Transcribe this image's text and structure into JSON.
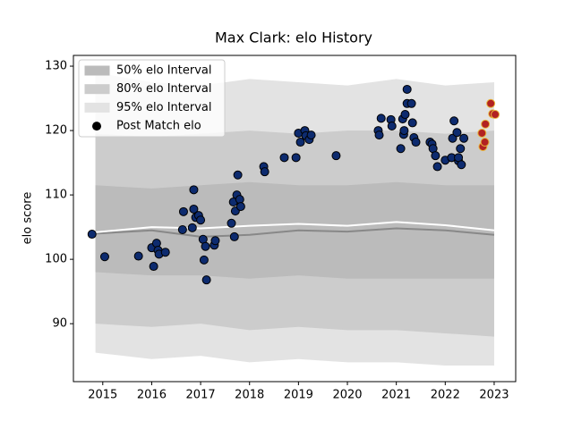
{
  "chart_data": {
    "type": "scatter",
    "title": "Max Clark: elo History",
    "ylabel": "elo score",
    "xlim": [
      2014.4,
      2023.44
    ],
    "ylim": [
      81,
      131.67
    ],
    "xticks": [
      2015,
      2016,
      2017,
      2018,
      2019,
      2020,
      2021,
      2022,
      2023
    ],
    "yticks": [
      90,
      100,
      110,
      120,
      130
    ],
    "legend": "upper left",
    "bands": [
      {
        "name": "50% elo Interval",
        "color": "#bbbbbb",
        "x": [
          2014.85,
          2016,
          2017,
          2018,
          2019,
          2020,
          2021,
          2022,
          2023
        ],
        "upper": [
          111.5,
          111,
          111.5,
          112,
          111.5,
          111.5,
          112,
          111.5,
          111.5
        ],
        "lower": [
          98,
          97.5,
          97.5,
          97,
          97.5,
          97,
          97,
          97,
          97
        ]
      },
      {
        "name": "80% elo Interval",
        "color": "#cccccc",
        "x": [
          2014.85,
          2016,
          2017,
          2018,
          2019,
          2020,
          2021,
          2022,
          2023
        ],
        "upper": [
          119.5,
          119,
          119.5,
          120,
          119.5,
          120,
          120,
          119.5,
          120
        ],
        "lower": [
          90,
          89.5,
          90,
          89,
          89.5,
          89,
          89,
          88.5,
          88
        ]
      },
      {
        "name": "95% elo Interval",
        "color": "#e3e3e3",
        "x": [
          2014.85,
          2016,
          2017,
          2018,
          2019,
          2020,
          2021,
          2022,
          2023
        ],
        "upper": [
          129,
          127.5,
          127,
          128,
          127.5,
          127,
          128,
          127,
          127.5
        ],
        "lower": [
          85.5,
          84.5,
          85,
          84,
          84.5,
          84,
          84,
          83.5,
          83.5
        ]
      }
    ],
    "lines": [
      {
        "color": "#888888",
        "x": [
          2014.85,
          2016,
          2017,
          2018,
          2019,
          2020,
          2021,
          2022,
          2023
        ],
        "values": [
          104,
          104.5,
          103.5,
          103.8,
          104.5,
          104.3,
          104.8,
          104.5,
          103.8
        ]
      },
      {
        "color": "#ffffff",
        "x": [
          2014.85,
          2016,
          2017,
          2018,
          2019,
          2020,
          2021,
          2022,
          2023
        ],
        "values": [
          104.2,
          105,
          104.8,
          105.2,
          105.5,
          105.2,
          105.8,
          105.3,
          104.5
        ]
      }
    ],
    "series": [
      {
        "name": "Post Match elo",
        "color": "#0d2b6f",
        "edge_color": "#000000",
        "legend_color": "#000000",
        "x": [
          2014.78,
          2015.04,
          2015.73,
          2016.0,
          2016.04,
          2016.1,
          2016.13,
          2016.15,
          2016.28,
          2016.63,
          2016.65,
          2016.83,
          2016.86,
          2016.86,
          2016.9,
          2016.96,
          2017.0,
          2017.05,
          2017.07,
          2017.1,
          2017.12,
          2017.28,
          2017.3,
          2017.63,
          2017.67,
          2017.69,
          2017.71,
          2017.74,
          2017.76,
          2017.8,
          2017.82,
          2018.29,
          2018.31,
          2018.71,
          2018.95,
          2019.0,
          2019.04,
          2019.13,
          2019.15,
          2019.22,
          2019.26,
          2019.77,
          2020.63,
          2020.65,
          2020.69,
          2020.89,
          2020.91,
          2021.09,
          2021.13,
          2021.15,
          2021.16,
          2021.18,
          2021.22,
          2021.22,
          2021.31,
          2021.33,
          2021.36,
          2021.4,
          2021.69,
          2021.73,
          2021.75,
          2021.8,
          2021.84,
          2022.0,
          2022.13,
          2022.15,
          2022.18,
          2022.24,
          2022.27,
          2022.27,
          2022.31,
          2022.33,
          2022.38
        ],
        "values": [
          103.9,
          100.4,
          100.5,
          101.8,
          98.9,
          102.5,
          101.4,
          100.8,
          101.1,
          104.6,
          107.4,
          104.9,
          110.8,
          107.8,
          106.5,
          106.8,
          106.1,
          103.1,
          99.9,
          102,
          96.8,
          102.2,
          102.9,
          105.6,
          108.9,
          103.5,
          107.5,
          110,
          113.1,
          109.3,
          108.2,
          114.4,
          113.6,
          115.8,
          115.8,
          119.6,
          118.2,
          120,
          119.2,
          118.6,
          119.3,
          116.1,
          120,
          119.3,
          121.9,
          121.7,
          120.7,
          117.2,
          121.8,
          119.4,
          120,
          122.5,
          126.4,
          124.2,
          124.2,
          121.2,
          118.9,
          118.2,
          118.2,
          117.9,
          117.2,
          116.1,
          114.4,
          115.4,
          115.8,
          118.8,
          121.5,
          119.7,
          115.3,
          115.8,
          117.2,
          114.7,
          118.8
        ]
      },
      {
        "color": "#b22222",
        "edge_color": "#e8b53a",
        "x": [
          2022.77,
          2022.81,
          2022.75,
          2022.82,
          2022.93,
          2022.97,
          2023.02
        ],
        "values": [
          117.5,
          118.2,
          119.6,
          121,
          124.2,
          122.6,
          122.5
        ]
      }
    ]
  }
}
